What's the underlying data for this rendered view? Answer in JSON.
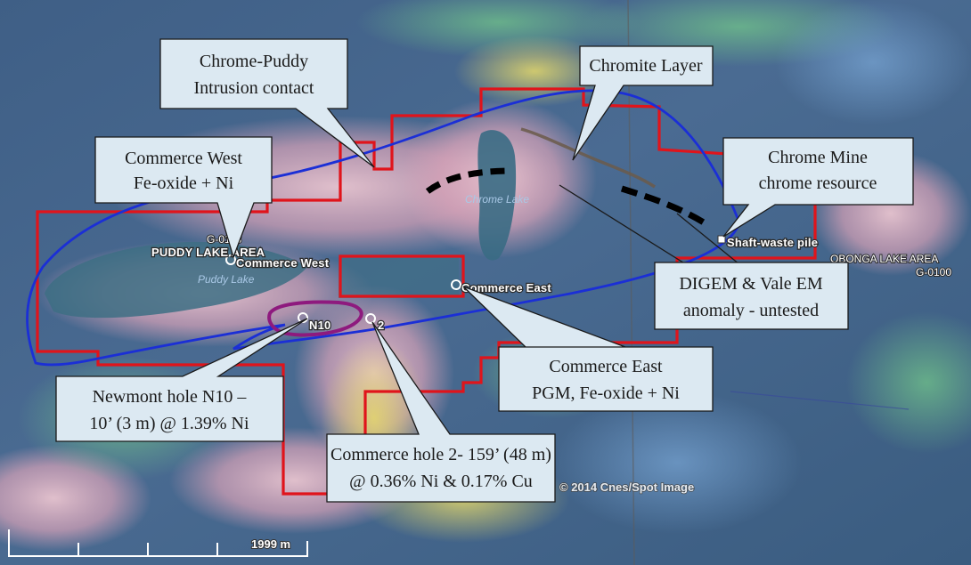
{
  "map_labels": {
    "puddy_lake_area": "PUDDY LAKE AREA",
    "g0118": "G-0118",
    "puddy_lake": "Puddy Lake",
    "chrome_lake": "Chrome Lake",
    "commerce_west": "Commerce West",
    "commerce_east": "Commerce East",
    "n10": "N10",
    "hole2": "2",
    "shaft_waste_pile": "Shaft-waste pile",
    "obonga_lake_area": "OBONGA LAKE AREA",
    "g0100": "G-0100"
  },
  "copyright": "© 2014 Cnes/Spot Image",
  "scale_label": "1999 m",
  "callouts": {
    "chrome_puddy": [
      "Chrome-Puddy",
      "Intrusion contact"
    ],
    "chromite_layer": [
      "Chromite Layer"
    ],
    "commerce_west": [
      "Commerce West",
      "Fe-oxide + Ni"
    ],
    "chrome_mine": [
      "Chrome Mine",
      "chrome resource"
    ],
    "digem": [
      "DIGEM & Vale EM",
      "anomaly - untested"
    ],
    "commerce_east": [
      "Commerce East",
      "PGM, Fe-oxide + Ni"
    ],
    "newmont": [
      "Newmont hole N10 –",
      "10’ (3 m) @ 1.39% Ni"
    ],
    "commerce_hole2": [
      "Commerce hole 2- 159’ (48 m)",
      "@ 0.36% Ni & 0.17% Cu"
    ]
  },
  "colors": {
    "claim_boundary": "#e0141b",
    "intrusion_outline": "#1b2fd6",
    "n10_outline": "#8e1a7e",
    "callout_fill": "#dce9f2",
    "anomaly_dash": "#000000"
  }
}
